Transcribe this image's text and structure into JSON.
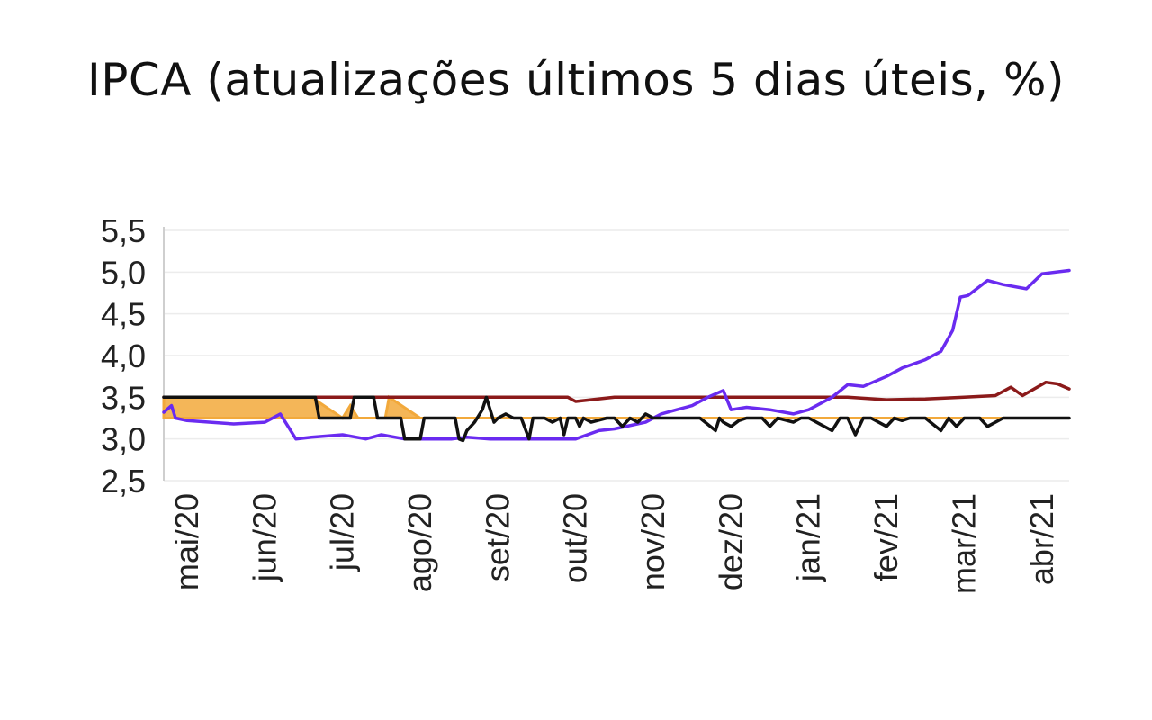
{
  "chart_data": {
    "type": "line",
    "title": "IPCA (atualizações últimos 5 dias úteis, %)",
    "xlabel": "",
    "ylabel": "",
    "ylim": [
      2.5,
      5.5
    ],
    "yticks": [
      "2,5",
      "3,0",
      "3,5",
      "4,0",
      "4,5",
      "5,0",
      "5,5"
    ],
    "ytick_values": [
      2.5,
      3.0,
      3.5,
      4.0,
      4.5,
      5.0,
      5.5
    ],
    "xtick_labels": [
      "mai/20",
      "jun/20",
      "jul/20",
      "ago/20",
      "set/20",
      "out/20",
      "nov/20",
      "dez/20",
      "jan/21",
      "fev/21",
      "mar/21",
      "abr/21"
    ],
    "x_month_index_range": [
      -0.3,
      11.35
    ],
    "grid": "horizontal",
    "legend": "none",
    "series": [
      {
        "color": "#f2a93b",
        "style": "area",
        "x": [
          -0.3,
          1.6,
          2.0,
          2.1,
          2.2,
          2.55,
          2.6,
          3.0,
          3.2,
          3.3,
          3.4,
          3.9,
          5.5,
          6.0,
          8.0,
          9.0,
          11.35
        ],
        "values": [
          3.5,
          3.5,
          3.25,
          3.4,
          3.25,
          3.25,
          3.5,
          3.25,
          3.25,
          3.25,
          3.25,
          3.25,
          3.25,
          3.25,
          3.25,
          3.25,
          3.25
        ]
      },
      {
        "color": "#8b1a1a",
        "x": [
          -0.3,
          4.9,
          5.0,
          5.5,
          6.0,
          6.4,
          7.0,
          7.6,
          8.0,
          8.5,
          9.0,
          9.5,
          10.0,
          10.4,
          10.6,
          10.75,
          10.9,
          11.05,
          11.2,
          11.35
        ],
        "values": [
          3.5,
          3.5,
          3.45,
          3.5,
          3.5,
          3.5,
          3.5,
          3.5,
          3.5,
          3.5,
          3.47,
          3.48,
          3.5,
          3.52,
          3.62,
          3.52,
          3.6,
          3.68,
          3.66,
          3.6
        ]
      },
      {
        "color": "#6a2bf0",
        "x": [
          -0.3,
          -0.2,
          -0.15,
          0.0,
          0.3,
          0.6,
          1.0,
          1.2,
          1.4,
          1.6,
          2.0,
          2.3,
          2.5,
          2.8,
          3.1,
          3.4,
          3.6,
          3.9,
          4.2,
          4.6,
          5.0,
          5.3,
          5.5,
          5.9,
          6.1,
          6.3,
          6.5,
          6.7,
          6.9,
          7.0,
          7.2,
          7.5,
          7.8,
          8.0,
          8.3,
          8.5,
          8.7,
          9.0,
          9.2,
          9.5,
          9.7,
          9.85,
          9.95,
          10.05,
          10.3,
          10.5,
          10.8,
          11.0,
          11.35
        ],
        "values": [
          3.32,
          3.4,
          3.25,
          3.22,
          3.2,
          3.18,
          3.2,
          3.3,
          3.0,
          3.02,
          3.05,
          3.0,
          3.05,
          3.0,
          3.0,
          3.0,
          3.02,
          3.0,
          3.0,
          3.0,
          3.0,
          3.1,
          3.12,
          3.2,
          3.3,
          3.35,
          3.4,
          3.5,
          3.58,
          3.35,
          3.38,
          3.35,
          3.3,
          3.35,
          3.5,
          3.65,
          3.63,
          3.75,
          3.85,
          3.95,
          4.05,
          4.3,
          4.7,
          4.72,
          4.9,
          4.85,
          4.8,
          4.98,
          5.02
        ]
      },
      {
        "color": "#111111",
        "x": [
          -0.3,
          1.65,
          1.7,
          2.1,
          2.15,
          2.4,
          2.45,
          2.75,
          2.8,
          3.0,
          3.05,
          3.45,
          3.5,
          3.55,
          3.6,
          3.7,
          3.8,
          3.85,
          3.95,
          4.0,
          4.1,
          4.2,
          4.3,
          4.4,
          4.45,
          4.6,
          4.7,
          4.8,
          4.85,
          4.9,
          5.0,
          5.05,
          5.1,
          5.2,
          5.4,
          5.5,
          5.6,
          5.7,
          5.8,
          5.9,
          6.0,
          6.1,
          6.3,
          6.6,
          6.8,
          6.85,
          6.9,
          7.0,
          7.1,
          7.2,
          7.4,
          7.5,
          7.6,
          7.8,
          7.9,
          8.0,
          8.3,
          8.4,
          8.5,
          8.6,
          8.7,
          8.8,
          9.0,
          9.1,
          9.2,
          9.3,
          9.5,
          9.7,
          9.8,
          9.9,
          10.0,
          10.2,
          10.3,
          10.5,
          10.6,
          11.35
        ],
        "values": [
          3.5,
          3.5,
          3.25,
          3.25,
          3.5,
          3.5,
          3.25,
          3.25,
          3.0,
          3.0,
          3.25,
          3.25,
          3.0,
          2.98,
          3.1,
          3.2,
          3.35,
          3.5,
          3.2,
          3.25,
          3.3,
          3.25,
          3.25,
          3.0,
          3.25,
          3.25,
          3.2,
          3.25,
          3.05,
          3.25,
          3.25,
          3.15,
          3.25,
          3.2,
          3.25,
          3.25,
          3.15,
          3.25,
          3.2,
          3.3,
          3.25,
          3.25,
          3.25,
          3.25,
          3.1,
          3.25,
          3.2,
          3.15,
          3.22,
          3.25,
          3.25,
          3.15,
          3.25,
          3.2,
          3.25,
          3.25,
          3.1,
          3.25,
          3.25,
          3.05,
          3.25,
          3.25,
          3.15,
          3.25,
          3.22,
          3.25,
          3.25,
          3.1,
          3.25,
          3.15,
          3.25,
          3.25,
          3.15,
          3.25,
          3.25,
          3.25
        ]
      }
    ]
  }
}
